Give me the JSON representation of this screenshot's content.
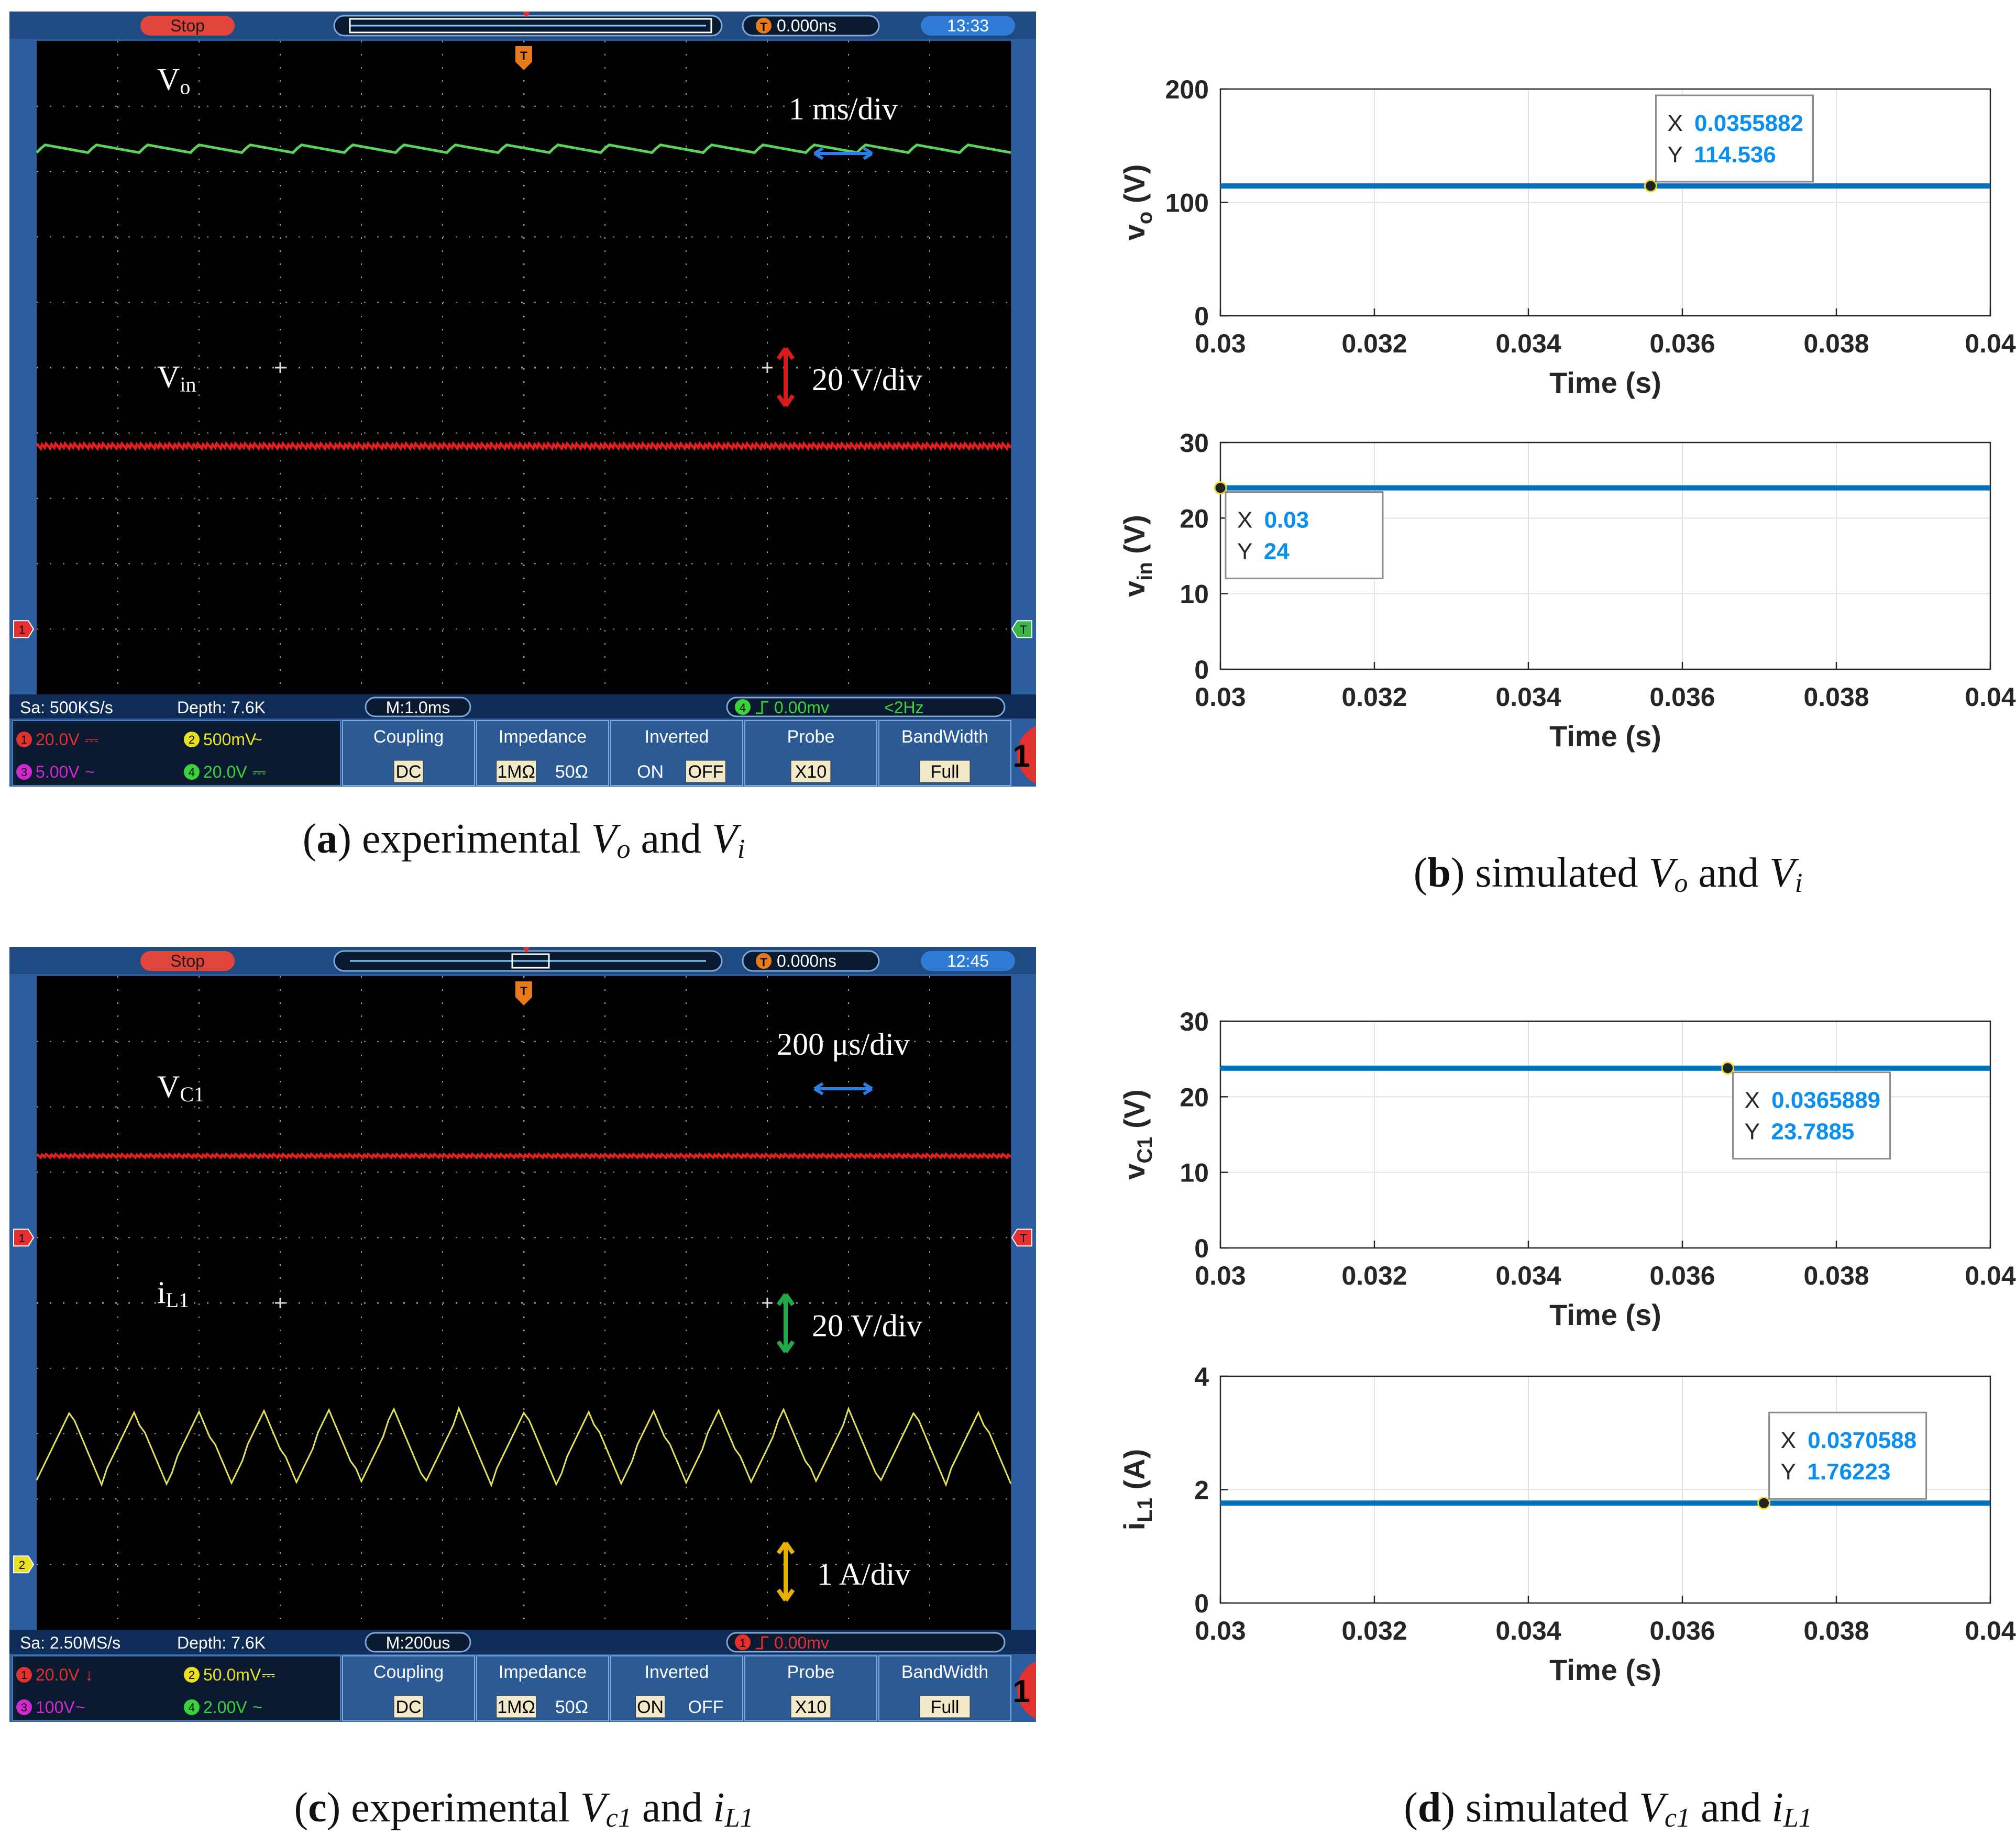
{
  "captions": {
    "a": {
      "letter": "a",
      "text": "experimental",
      "v1": "V",
      "s1": "o",
      "and": "and",
      "v2": "V",
      "s2": "i"
    },
    "b": {
      "letter": "b",
      "text": "simulated",
      "v1": "V",
      "s1": "o",
      "and": "and",
      "v2": "V",
      "s2": "i"
    },
    "c": {
      "letter": "c",
      "text": "experimental",
      "v1": "V",
      "s1": "c1",
      "and": "and",
      "v2": "i",
      "s2": "L1"
    },
    "d": {
      "letter": "d",
      "text": "simulated",
      "v1": "V",
      "s1": "c1",
      "and": "and",
      "v2": "i",
      "s2": "L1"
    }
  },
  "scopes": [
    {
      "id": "a",
      "status": "Stop",
      "trigger_time": "0.000ns",
      "clock": "13:33",
      "timebase_label": "1 ms/div",
      "scale_label": "20 V/div",
      "scale_color": "#d81b1b",
      "traces": [
        {
          "name_main": "V",
          "name_sub": "o",
          "color": "#5bd35b",
          "level_div": 1.65,
          "ripple_div": 0.06,
          "shape": "saw",
          "periods": 19
        },
        {
          "name_main": "V",
          "name_sub": "in",
          "color": "#e02020",
          "level_div": 6.2,
          "ripple_div": 0.03,
          "shape": "flat",
          "periods": 60
        }
      ],
      "left_markers": [
        {
          "label": "1",
          "color": "#e53030",
          "level_div": 9.0
        }
      ],
      "right_markers": [
        {
          "label": "T",
          "color": "#3bb54a",
          "level_div": 9.0
        }
      ],
      "info": {
        "sample": "Sa: 500KS/s",
        "depth": "Depth: 7.6K",
        "mtime": "M:1.0ms",
        "trig": "0.00mv",
        "trig_freq": "<2Hz",
        "trig_ch": "4"
      },
      "channels": [
        {
          "num": "1",
          "color": "#e53030",
          "value": "20.0V",
          "coupling": "⎓"
        },
        {
          "num": "2",
          "color": "#e8e020",
          "value": "500mV",
          "coupling": "~"
        },
        {
          "num": "3",
          "color": "#d02ad0",
          "value": "5.00V",
          "coupling": "~"
        },
        {
          "num": "4",
          "color": "#3bd33b",
          "value": "20.0V",
          "coupling": "⎓"
        }
      ],
      "menu": [
        {
          "title": "Coupling",
          "opts": [
            "DC"
          ],
          "sel": 0
        },
        {
          "title": "Impedance",
          "opts": [
            "1MΩ",
            "50Ω"
          ],
          "sel": 0
        },
        {
          "title": "Inverted",
          "opts": [
            "ON",
            "OFF"
          ],
          "sel": 1
        },
        {
          "title": "Probe",
          "opts": [
            "X10"
          ],
          "sel": 0
        },
        {
          "title": "BandWidth",
          "opts": [
            "Full"
          ],
          "sel": 0
        }
      ],
      "page_num": "1"
    },
    {
      "id": "c",
      "status": "Stop",
      "trigger_time": "0.000ns",
      "clock": "12:45",
      "timebase_label": "200 μs/div",
      "scale_label": "20 V/div",
      "scale_color": "#20a84a",
      "scale_label2": "1 A/div",
      "scale_color2": "#e8b000",
      "traces": [
        {
          "name_main": "V",
          "name_sub": "C1",
          "color": "#e02020",
          "level_div": 2.75,
          "ripple_div": 0.02,
          "shape": "flat",
          "periods": 60
        },
        {
          "name_main": "i",
          "name_sub": "L1",
          "color": "#e6e055",
          "level_div": 7.2,
          "ripple_div": 0.55,
          "shape": "tri",
          "periods": 15
        }
      ],
      "left_markers": [
        {
          "label": "1",
          "color": "#e53030",
          "level_div": 4.0
        },
        {
          "label": "2",
          "color": "#e8e020",
          "level_div": 9.0
        }
      ],
      "right_markers": [
        {
          "label": "T",
          "color": "#e53030",
          "level_div": 4.0
        }
      ],
      "info": {
        "sample": "Sa: 2.50MS/s",
        "depth": "Depth: 7.6K",
        "mtime": "M:200us",
        "trig": "0.00mv",
        "trig_freq": "",
        "trig_ch": "1"
      },
      "channels": [
        {
          "num": "1",
          "color": "#e53030",
          "value": "20.0V",
          "coupling": "↓"
        },
        {
          "num": "2",
          "color": "#e8e020",
          "value": "50.0mV",
          "coupling": "⎓"
        },
        {
          "num": "3",
          "color": "#d02ad0",
          "value": "100V",
          "coupling": "~"
        },
        {
          "num": "4",
          "color": "#3bd33b",
          "value": "2.00V",
          "coupling": "~"
        }
      ],
      "menu": [
        {
          "title": "Coupling",
          "opts": [
            "DC"
          ],
          "sel": 0
        },
        {
          "title": "Impedance",
          "opts": [
            "1MΩ",
            "50Ω"
          ],
          "sel": 0
        },
        {
          "title": "Inverted",
          "opts": [
            "ON",
            "OFF"
          ],
          "sel": 0
        },
        {
          "title": "Probe",
          "opts": [
            "X10"
          ],
          "sel": 0
        },
        {
          "title": "BandWidth",
          "opts": [
            "Full"
          ],
          "sel": 0
        }
      ],
      "page_num": "1"
    }
  ],
  "chart_data": [
    {
      "id": "b1",
      "type": "line",
      "ylabel_main": "v",
      "ylabel_sub": "o",
      "ylabel_unit": "(V)",
      "xlabel": "Time (s)",
      "xlim": [
        0.03,
        0.04
      ],
      "ylim": [
        0,
        200
      ],
      "xticks": [
        0.03,
        0.032,
        0.034,
        0.036,
        0.038,
        0.04
      ],
      "xtick_labels": [
        "0.03",
        "0.032",
        "0.034",
        "0.036",
        "0.038",
        "0.04"
      ],
      "yticks": [
        0,
        100,
        200
      ],
      "ytick_labels": [
        "0",
        "100",
        "200"
      ],
      "grid": true,
      "series": [
        {
          "x": [
            0.03,
            0.04
          ],
          "y": [
            114.5,
            114.5
          ]
        }
      ],
      "datatip": {
        "x": 0.0355882,
        "y": 114.536,
        "xtext": "0.0355882",
        "ytext": "114.536",
        "placement": "above-right"
      }
    },
    {
      "id": "b2",
      "type": "line",
      "ylabel_main": "v",
      "ylabel_sub": "in",
      "ylabel_unit": "(V)",
      "xlabel": "Time (s)",
      "xlim": [
        0.03,
        0.04
      ],
      "ylim": [
        0,
        30
      ],
      "xticks": [
        0.03,
        0.032,
        0.034,
        0.036,
        0.038,
        0.04
      ],
      "xtick_labels": [
        "0.03",
        "0.032",
        "0.034",
        "0.036",
        "0.038",
        "0.04"
      ],
      "yticks": [
        0,
        10,
        20,
        30
      ],
      "ytick_labels": [
        "0",
        "10",
        "20",
        "30"
      ],
      "grid": true,
      "series": [
        {
          "x": [
            0.03,
            0.04
          ],
          "y": [
            24,
            24
          ]
        }
      ],
      "datatip": {
        "x": 0.03,
        "y": 24,
        "xtext": "0.03",
        "ytext": "24",
        "placement": "below-right"
      }
    },
    {
      "id": "d1",
      "type": "line",
      "ylabel_main": "v",
      "ylabel_sub": "C1",
      "ylabel_unit": "(V)",
      "xlabel": "Time (s)",
      "xlim": [
        0.03,
        0.04
      ],
      "ylim": [
        0,
        30
      ],
      "xticks": [
        0.03,
        0.032,
        0.034,
        0.036,
        0.038,
        0.04
      ],
      "xtick_labels": [
        "0.03",
        "0.032",
        "0.034",
        "0.036",
        "0.038",
        "0.04"
      ],
      "yticks": [
        0,
        10,
        20,
        30
      ],
      "ytick_labels": [
        "0",
        "10",
        "20",
        "30"
      ],
      "grid": true,
      "series": [
        {
          "x": [
            0.03,
            0.04
          ],
          "y": [
            23.7885,
            23.7885
          ]
        }
      ],
      "datatip": {
        "x": 0.0365889,
        "y": 23.7885,
        "xtext": "0.0365889",
        "ytext": "23.7885",
        "placement": "below-right"
      }
    },
    {
      "id": "d2",
      "type": "line",
      "ylabel_main": "i",
      "ylabel_sub": "L1",
      "ylabel_unit": "(A)",
      "xlabel": "Time (s)",
      "xlim": [
        0.03,
        0.04
      ],
      "ylim": [
        0,
        4
      ],
      "xticks": [
        0.03,
        0.032,
        0.034,
        0.036,
        0.038,
        0.04
      ],
      "xtick_labels": [
        "0.03",
        "0.032",
        "0.034",
        "0.036",
        "0.038",
        "0.04"
      ],
      "yticks": [
        0,
        2,
        4
      ],
      "ytick_labels": [
        "0",
        "2",
        "4"
      ],
      "grid": true,
      "series": [
        {
          "x": [
            0.03,
            0.04
          ],
          "y": [
            1.76223,
            1.76223
          ]
        }
      ],
      "datatip": {
        "x": 0.0370588,
        "y": 1.76223,
        "xtext": "0.0370588",
        "ytext": "1.76223",
        "placement": "above-right"
      }
    }
  ],
  "labels": {
    "datatip_x": "X",
    "datatip_y": "Y"
  },
  "colors": {
    "sim_line": "#0072bd",
    "datatip_value": "#0a8ff0",
    "scope_frame": "#2c5d9e",
    "scope_bg": "#000000",
    "grid_dot": "#9a9a9a"
  }
}
